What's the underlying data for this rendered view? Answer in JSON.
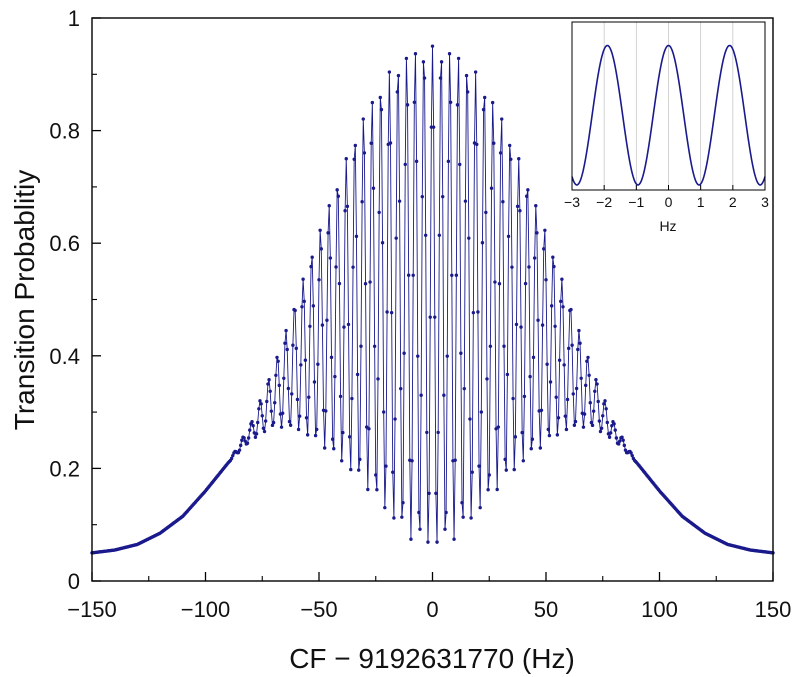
{
  "chart_data": [
    {
      "type": "line",
      "name": "main",
      "xlabel": "CF − 9192631770 (Hz)",
      "ylabel": "Transition Probablitiy",
      "xlim": [
        -150,
        150
      ],
      "ylim": [
        0,
        1
      ],
      "x_ticks": [
        -150,
        -100,
        -50,
        0,
        50,
        100,
        150
      ],
      "x_tick_labels": [
        "−150",
        "−100",
        "−50",
        "0",
        "50",
        "100",
        "150"
      ],
      "y_ticks": [
        0,
        0.2,
        0.4,
        0.6,
        0.8,
        1
      ],
      "y_tick_labels": [
        "0",
        "0.2",
        "0.4",
        "0.6",
        "0.8",
        "1"
      ],
      "grid": false,
      "markers": true,
      "color": "#1a1a8c",
      "sample_step_hz": 0.5,
      "fringe_period_hz": 3.8,
      "envelope_upper": {
        "x": [
          -150,
          -140,
          -130,
          -120,
          -110,
          -100,
          -90,
          -80,
          -70,
          -60,
          -50,
          -40,
          -30,
          -20,
          -10,
          0,
          10,
          20,
          30,
          40,
          50,
          60,
          70,
          80,
          90,
          100,
          110,
          120,
          130,
          140,
          150
        ],
        "y": [
          0.05,
          0.055,
          0.065,
          0.085,
          0.115,
          0.16,
          0.21,
          0.28,
          0.38,
          0.5,
          0.62,
          0.73,
          0.83,
          0.9,
          0.94,
          0.95,
          0.94,
          0.9,
          0.83,
          0.73,
          0.62,
          0.5,
          0.38,
          0.28,
          0.21,
          0.16,
          0.115,
          0.085,
          0.065,
          0.055,
          0.05
        ]
      },
      "envelope_lower": {
        "x": [
          -150,
          -140,
          -130,
          -120,
          -110,
          -100,
          -90,
          -80,
          -70,
          -60,
          -50,
          -40,
          -30,
          -20,
          -10,
          0,
          10,
          20,
          30,
          40,
          50,
          60,
          70,
          80,
          90,
          100,
          110,
          120,
          130,
          140,
          150
        ],
        "y": [
          0.05,
          0.055,
          0.065,
          0.085,
          0.115,
          0.16,
          0.21,
          0.25,
          0.275,
          0.27,
          0.245,
          0.21,
          0.17,
          0.12,
          0.075,
          0.06,
          0.075,
          0.12,
          0.17,
          0.21,
          0.245,
          0.27,
          0.275,
          0.25,
          0.21,
          0.16,
          0.115,
          0.085,
          0.065,
          0.055,
          0.05
        ]
      }
    },
    {
      "type": "line",
      "name": "inset",
      "xlabel": "Hz",
      "ylabel": "",
      "xlim": [
        -3,
        3
      ],
      "ylim": [
        0.0,
        1.0
      ],
      "x_ticks": [
        -3,
        -2,
        -1,
        0,
        1,
        2,
        3
      ],
      "x_tick_labels": [
        "−3",
        "−2",
        "−1",
        "0",
        "1",
        "2",
        "3"
      ],
      "grid": true,
      "markers": false,
      "color": "#1a1a8c",
      "x": [
        -3,
        -2.85,
        -2.7,
        -2.55,
        -2.4,
        -2.25,
        -2.1,
        -1.95,
        -1.8,
        -1.65,
        -1.5,
        -1.35,
        -1.2,
        -1.05,
        -0.9,
        -0.75,
        -0.6,
        -0.45,
        -0.3,
        -0.15,
        0,
        0.15,
        0.3,
        0.45,
        0.6,
        0.75,
        0.9,
        1.05,
        1.2,
        1.35,
        1.5,
        1.65,
        1.8,
        1.95,
        2.1,
        2.25,
        2.4,
        2.55,
        2.7,
        2.85,
        3
      ],
      "y": [
        0.03,
        0.06,
        0.15,
        0.29,
        0.46,
        0.63,
        0.78,
        0.86,
        0.84,
        0.75,
        0.6,
        0.43,
        0.26,
        0.13,
        0.05,
        0.03,
        0.07,
        0.17,
        0.33,
        0.5,
        0.86,
        0.5,
        0.33,
        0.17,
        0.07,
        0.03,
        0.05,
        0.13,
        0.26,
        0.43,
        0.6,
        0.75,
        0.84,
        0.86,
        0.78,
        0.63,
        0.46,
        0.29,
        0.15,
        0.06,
        0.03
      ]
    }
  ]
}
